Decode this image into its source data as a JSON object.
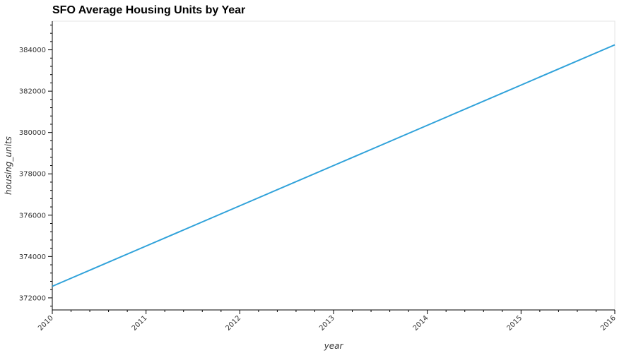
{
  "chart_data": {
    "type": "line",
    "title": "SFO Average Housing Units by Year",
    "xlabel": "year",
    "ylabel": "housing_units",
    "x": [
      2010,
      2011,
      2012,
      2013,
      2014,
      2015,
      2016
    ],
    "series": [
      {
        "values": [
          372560,
          374507,
          376454,
          378401,
          380348,
          382295,
          384242
        ],
        "color": "#30a2da"
      }
    ],
    "xlim": [
      2010,
      2016
    ],
    "ylim": [
      371416,
      385386
    ],
    "x_ticks": [
      "2010",
      "2011",
      "2012",
      "2013",
      "2014",
      "2015",
      "2016"
    ],
    "y_ticks": [
      "372000",
      "374000",
      "376000",
      "378000",
      "380000",
      "382000",
      "384000"
    ],
    "grid": false,
    "legend": "none"
  }
}
